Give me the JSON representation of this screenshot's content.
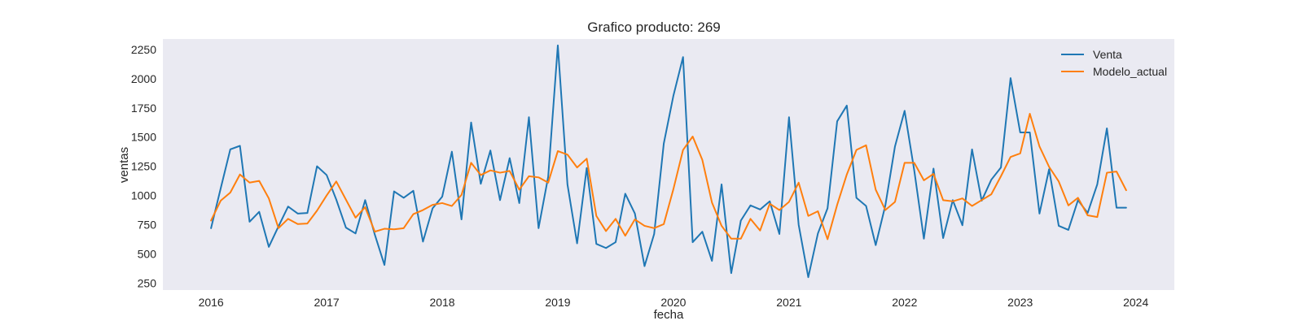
{
  "chart_data": {
    "type": "line",
    "title": "Grafico producto: 269",
    "xlabel": "fecha",
    "ylabel": "ventas",
    "x_start": "2016-01",
    "x_step": "month",
    "x_ticks": [
      "2016",
      "2017",
      "2018",
      "2019",
      "2020",
      "2021",
      "2022",
      "2023",
      "2024"
    ],
    "y_ticks": [
      250,
      500,
      750,
      1000,
      1250,
      1500,
      1750,
      2000,
      2250
    ],
    "xlim": [
      "2015-08",
      "2024-05"
    ],
    "ylim": [
      190,
      2340
    ],
    "grid": false,
    "background": "#eaeaf2",
    "legend_position": "top-right",
    "series": [
      {
        "name": "Venta",
        "color": "#1f77b4",
        "values": [
          720,
          1060,
          1395,
          1425,
          775,
          860,
          560,
          735,
          905,
          845,
          850,
          1250,
          1175,
          965,
          725,
          675,
          960,
          665,
          405,
          1035,
          980,
          1040,
          605,
          890,
          990,
          1375,
          795,
          1625,
          1100,
          1385,
          960,
          1320,
          935,
          1670,
          720,
          1160,
          2285,
          1095,
          590,
          1235,
          585,
          550,
          600,
          1015,
          845,
          395,
          670,
          1445,
          1855,
          2185,
          600,
          690,
          440,
          1095,
          335,
          785,
          915,
          880,
          950,
          670,
          1670,
          750,
          300,
          675,
          890,
          1635,
          1770,
          980,
          910,
          575,
          915,
          1420,
          1725,
          1215,
          630,
          1230,
          635,
          960,
          745,
          1395,
          955,
          1135,
          1240,
          2005,
          1540,
          1540,
          845,
          1225,
          740,
          705,
          960,
          850,
          1095,
          1575,
          895,
          895
        ]
      },
      {
        "name": "Modelo_actual",
        "color": "#ff7f0e",
        "values": [
          785,
          955,
          1025,
          1180,
          1110,
          1125,
          975,
          720,
          800,
          755,
          760,
          870,
          1000,
          1120,
          965,
          810,
          900,
          690,
          715,
          710,
          720,
          840,
          875,
          920,
          935,
          910,
          1005,
          1280,
          1175,
          1215,
          1195,
          1210,
          1050,
          1165,
          1155,
          1110,
          1380,
          1350,
          1240,
          1315,
          825,
          695,
          800,
          655,
          795,
          740,
          720,
          755,
          1055,
          1390,
          1505,
          1305,
          940,
          740,
          630,
          630,
          800,
          700,
          930,
          875,
          945,
          1110,
          825,
          865,
          625,
          920,
          1180,
          1390,
          1430,
          1050,
          875,
          945,
          1280,
          1280,
          1130,
          1185,
          960,
          950,
          975,
          910,
          960,
          1010,
          1165,
          1330,
          1360,
          1700,
          1420,
          1245,
          1120,
          915,
          980,
          830,
          815,
          1195,
          1205,
          1045
        ]
      }
    ]
  }
}
